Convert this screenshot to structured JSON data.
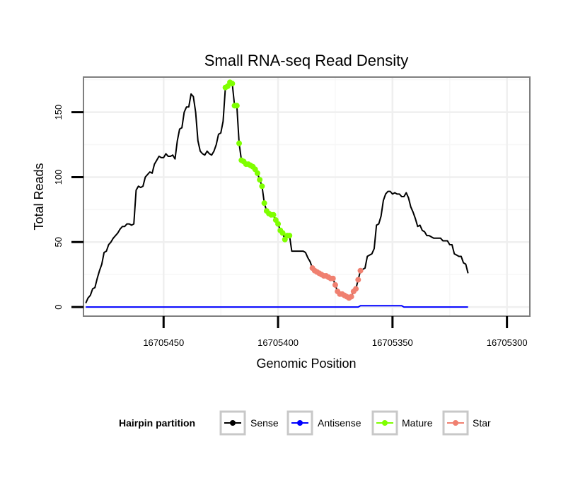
{
  "chart_data": {
    "type": "line",
    "title": "Small RNA-seq Read Density",
    "xlabel": "Genomic Position",
    "ylabel": "Total Reads",
    "xlim": [
      16705485,
      16705290
    ],
    "ylim": [
      -7,
      177
    ],
    "x_reversed": true,
    "grid": true,
    "x_ticks": [
      16705450,
      16705400,
      16705350,
      16705300
    ],
    "x_tick_labels": [
      "16705450",
      "16705400",
      "16705350",
      "16705300"
    ],
    "y_ticks": [
      0,
      50,
      100,
      150
    ],
    "y_tick_labels": [
      "0",
      "50",
      "100",
      "150"
    ],
    "legend": {
      "title": "Hairpin partition",
      "position": "bottom",
      "entries": [
        {
          "name": "Sense",
          "color": "#000000"
        },
        {
          "name": "Antisense",
          "color": "#0000ff"
        },
        {
          "name": "Mature",
          "color": "#7fff00"
        },
        {
          "name": "Star",
          "color": "#f08070"
        }
      ]
    },
    "series": [
      {
        "name": "Sense",
        "color": "#000000",
        "marker": false,
        "points": [
          [
            16705484,
            3
          ],
          [
            16705483,
            7
          ],
          [
            16705482,
            9
          ],
          [
            16705481,
            14
          ],
          [
            16705480,
            15
          ],
          [
            16705479,
            22
          ],
          [
            16705478,
            28
          ],
          [
            16705477,
            33
          ],
          [
            16705476,
            42
          ],
          [
            16705475,
            43
          ],
          [
            16705474,
            48
          ],
          [
            16705473,
            50
          ],
          [
            16705472,
            53
          ],
          [
            16705471,
            55
          ],
          [
            16705470,
            57
          ],
          [
            16705469,
            60
          ],
          [
            16705468,
            62
          ],
          [
            16705467,
            62
          ],
          [
            16705466,
            64
          ],
          [
            16705465,
            64
          ],
          [
            16705464,
            63
          ],
          [
            16705463,
            64
          ],
          [
            16705462,
            90
          ],
          [
            16705461,
            93
          ],
          [
            16705460,
            92
          ],
          [
            16705459,
            93
          ],
          [
            16705458,
            100
          ],
          [
            16705457,
            102
          ],
          [
            16705456,
            104
          ],
          [
            16705455,
            103
          ],
          [
            16705454,
            110
          ],
          [
            16705453,
            113
          ],
          [
            16705452,
            116
          ],
          [
            16705451,
            115
          ],
          [
            16705450,
            115
          ],
          [
            16705449,
            118
          ],
          [
            16705448,
            116
          ],
          [
            16705447,
            116
          ],
          [
            16705446,
            117
          ],
          [
            16705445,
            114
          ],
          [
            16705444,
            128
          ],
          [
            16705443,
            137
          ],
          [
            16705442,
            138
          ],
          [
            16705441,
            150
          ],
          [
            16705440,
            154
          ],
          [
            16705439,
            154
          ],
          [
            16705438,
            164
          ],
          [
            16705437,
            162
          ],
          [
            16705436,
            150
          ],
          [
            16705435,
            128
          ],
          [
            16705434,
            120
          ],
          [
            16705433,
            118
          ],
          [
            16705432,
            117
          ],
          [
            16705431,
            120
          ],
          [
            16705430,
            118
          ],
          [
            16705429,
            117
          ],
          [
            16705428,
            120
          ],
          [
            16705427,
            125
          ],
          [
            16705426,
            133
          ],
          [
            16705425,
            134
          ],
          [
            16705424,
            143
          ],
          [
            16705423,
            169
          ],
          [
            16705422,
            170
          ],
          [
            16705421,
            173
          ],
          [
            16705420,
            172
          ],
          [
            16705419,
            155
          ],
          [
            16705418,
            155
          ],
          [
            16705417,
            126
          ],
          [
            16705416,
            113
          ],
          [
            16705415,
            112
          ],
          [
            16705414,
            110
          ],
          [
            16705413,
            110
          ],
          [
            16705412,
            109
          ],
          [
            16705411,
            108
          ],
          [
            16705410,
            106
          ],
          [
            16705409,
            103
          ],
          [
            16705408,
            98
          ],
          [
            16705407,
            93
          ],
          [
            16705406,
            80
          ],
          [
            16705405,
            74
          ],
          [
            16705404,
            72
          ],
          [
            16705403,
            71
          ],
          [
            16705402,
            71
          ],
          [
            16705401,
            67
          ],
          [
            16705400,
            64
          ],
          [
            16705399,
            59
          ],
          [
            16705398,
            57
          ],
          [
            16705397,
            52
          ],
          [
            16705396,
            55
          ],
          [
            16705395,
            55
          ],
          [
            16705394,
            43
          ],
          [
            16705393,
            43
          ],
          [
            16705392,
            43
          ],
          [
            16705391,
            43
          ],
          [
            16705390,
            43
          ],
          [
            16705389,
            43
          ],
          [
            16705388,
            42
          ],
          [
            16705387,
            38
          ],
          [
            16705386,
            35
          ],
          [
            16705385,
            30
          ],
          [
            16705384,
            28
          ],
          [
            16705383,
            27
          ],
          [
            16705382,
            26
          ],
          [
            16705381,
            25
          ],
          [
            16705380,
            24
          ],
          [
            16705379,
            24
          ],
          [
            16705378,
            23
          ],
          [
            16705377,
            22
          ],
          [
            16705376,
            22
          ],
          [
            16705375,
            17
          ],
          [
            16705374,
            12
          ],
          [
            16705373,
            10
          ],
          [
            16705372,
            10
          ],
          [
            16705371,
            9
          ],
          [
            16705370,
            8
          ],
          [
            16705369,
            7
          ],
          [
            16705368,
            8
          ],
          [
            16705367,
            12
          ],
          [
            16705366,
            14
          ],
          [
            16705365,
            21
          ],
          [
            16705364,
            28
          ],
          [
            16705363,
            29
          ],
          [
            16705362,
            30
          ],
          [
            16705361,
            39
          ],
          [
            16705360,
            40
          ],
          [
            16705359,
            41
          ],
          [
            16705358,
            45
          ],
          [
            16705357,
            63
          ],
          [
            16705356,
            64
          ],
          [
            16705355,
            70
          ],
          [
            16705354,
            82
          ],
          [
            16705353,
            87
          ],
          [
            16705352,
            89
          ],
          [
            16705351,
            89
          ],
          [
            16705350,
            87
          ],
          [
            16705349,
            88
          ],
          [
            16705348,
            87
          ],
          [
            16705347,
            87
          ],
          [
            16705346,
            85
          ],
          [
            16705345,
            85
          ],
          [
            16705344,
            88
          ],
          [
            16705343,
            84
          ],
          [
            16705342,
            77
          ],
          [
            16705341,
            73
          ],
          [
            16705340,
            68
          ],
          [
            16705339,
            62
          ],
          [
            16705338,
            63
          ],
          [
            16705337,
            59
          ],
          [
            16705336,
            58
          ],
          [
            16705335,
            55
          ],
          [
            16705334,
            55
          ],
          [
            16705333,
            54
          ],
          [
            16705332,
            53
          ],
          [
            16705331,
            53
          ],
          [
            16705330,
            53
          ],
          [
            16705329,
            53
          ],
          [
            16705328,
            51
          ],
          [
            16705327,
            51
          ],
          [
            16705326,
            51
          ],
          [
            16705325,
            48
          ],
          [
            16705324,
            48
          ],
          [
            16705323,
            41
          ],
          [
            16705322,
            40
          ],
          [
            16705321,
            39
          ],
          [
            16705320,
            39
          ],
          [
            16705319,
            34
          ],
          [
            16705318,
            33
          ],
          [
            16705317,
            26
          ]
        ]
      },
      {
        "name": "Antisense",
        "color": "#0000ff",
        "marker": false,
        "points": [
          [
            16705484,
            0
          ],
          [
            16705365,
            0
          ],
          [
            16705364,
            1
          ],
          [
            16705350,
            1
          ],
          [
            16705346,
            1
          ],
          [
            16705345,
            0
          ],
          [
            16705317,
            0
          ]
        ]
      },
      {
        "name": "Mature",
        "color": "#7fff00",
        "marker": true,
        "points": [
          [
            16705423,
            169
          ],
          [
            16705422,
            170
          ],
          [
            16705421,
            173
          ],
          [
            16705420,
            172
          ],
          [
            16705419,
            155
          ],
          [
            16705418,
            155
          ],
          [
            16705417,
            126
          ],
          [
            16705416,
            113
          ],
          [
            16705415,
            112
          ],
          [
            16705414,
            110
          ],
          [
            16705413,
            110
          ],
          [
            16705412,
            109
          ],
          [
            16705411,
            108
          ],
          [
            16705410,
            106
          ],
          [
            16705409,
            103
          ],
          [
            16705408,
            98
          ],
          [
            16705407,
            93
          ],
          [
            16705406,
            80
          ],
          [
            16705405,
            74
          ],
          [
            16705404,
            72
          ],
          [
            16705403,
            71
          ],
          [
            16705402,
            71
          ],
          [
            16705401,
            67
          ],
          [
            16705400,
            64
          ],
          [
            16705399,
            59
          ],
          [
            16705398,
            57
          ],
          [
            16705397,
            52
          ],
          [
            16705396,
            55
          ],
          [
            16705395,
            55
          ]
        ]
      },
      {
        "name": "Star",
        "color": "#f08070",
        "marker": true,
        "points": [
          [
            16705385,
            30
          ],
          [
            16705384,
            28
          ],
          [
            16705383,
            27
          ],
          [
            16705382,
            26
          ],
          [
            16705381,
            25
          ],
          [
            16705380,
            24
          ],
          [
            16705379,
            24
          ],
          [
            16705378,
            23
          ],
          [
            16705377,
            22
          ],
          [
            16705376,
            22
          ],
          [
            16705375,
            17
          ],
          [
            16705374,
            12
          ],
          [
            16705373,
            10
          ],
          [
            16705372,
            10
          ],
          [
            16705371,
            9
          ],
          [
            16705370,
            8
          ],
          [
            16705369,
            7
          ],
          [
            16705368,
            8
          ],
          [
            16705367,
            12
          ],
          [
            16705366,
            14
          ],
          [
            16705365,
            21
          ],
          [
            16705364,
            28
          ]
        ]
      }
    ]
  }
}
